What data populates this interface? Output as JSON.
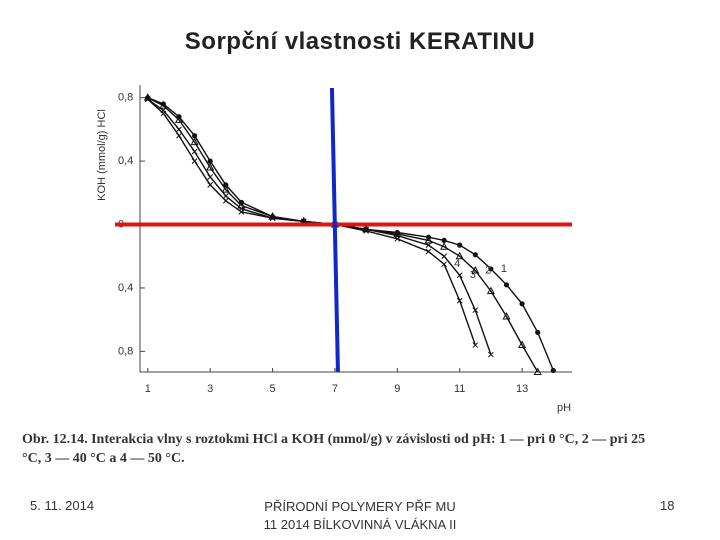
{
  "slide": {
    "title": "Sorpční vlastnosti KERATINU",
    "caption": "Obr. 12.14. Interakcia vlny s roztokmi HCl a KOH (mmol/g) v závislosti od pH: 1 — pri 0 °C, 2 — pri 25 °C, 3 — 40 °C a 4 — 50 °C.",
    "footer": {
      "date": "5. 11. 2014",
      "center": [
        "PŘÍRODNÍ POLYMERY PŘF MU",
        "11 2014 BÍLKOVINNÁ VLÁKNA II"
      ],
      "page": "18"
    }
  },
  "chart_data": {
    "type": "line",
    "x_label": "pH",
    "y_label": "KOH   (mmol/g)   HCl",
    "x": [
      1,
      1.5,
      2,
      2.5,
      3,
      3.5,
      4,
      5,
      6,
      7,
      8,
      9,
      10,
      10.5,
      11,
      11.5,
      12,
      12.5,
      13,
      13.5,
      14
    ],
    "series": [
      {
        "name": "1",
        "color": "#111111",
        "marker": "circle",
        "values": [
          0.8,
          0.76,
          0.68,
          0.56,
          0.4,
          0.25,
          0.14,
          0.05,
          0.02,
          0,
          -0.03,
          -0.05,
          -0.08,
          -0.1,
          -0.13,
          -0.19,
          -0.28,
          -0.38,
          -0.5,
          -0.68,
          -0.92
        ]
      },
      {
        "name": "2",
        "color": "#111111",
        "marker": "triangle",
        "values": [
          0.8,
          0.75,
          0.66,
          0.52,
          0.36,
          0.22,
          0.12,
          0.05,
          0.02,
          0,
          -0.03,
          -0.06,
          -0.1,
          -0.14,
          -0.2,
          -0.29,
          -0.42,
          -0.58,
          -0.76,
          -0.93,
          null
        ]
      },
      {
        "name": "3",
        "color": "#111111",
        "marker": "cross",
        "values": [
          0.79,
          0.72,
          0.6,
          0.46,
          0.3,
          0.18,
          0.1,
          0.04,
          0.02,
          0,
          -0.03,
          -0.07,
          -0.13,
          -0.2,
          -0.32,
          -0.54,
          -0.82,
          null,
          null,
          null,
          null
        ]
      },
      {
        "name": "4",
        "color": "#111111",
        "marker": "cross",
        "values": [
          0.79,
          0.7,
          0.56,
          0.4,
          0.25,
          0.15,
          0.08,
          0.04,
          0.02,
          0,
          -0.04,
          -0.09,
          -0.17,
          -0.25,
          -0.48,
          -0.76,
          null,
          null,
          null,
          null,
          null
        ]
      }
    ],
    "xlim": [
      0.75,
      14.6
    ],
    "ylim": [
      -0.93,
      0.88
    ],
    "xticks": [
      1,
      3,
      5,
      7,
      9,
      11,
      13
    ],
    "yticks": [
      {
        "value": 0.8,
        "label": "0,8"
      },
      {
        "value": 0.4,
        "label": "0,4"
      },
      0,
      {
        "value": -0.4,
        "label": "0,4"
      },
      {
        "value": -0.8,
        "label": "0,8"
      }
    ],
    "vline": {
      "x": 7,
      "color": "#1028c8"
    },
    "hline": {
      "y": 0,
      "color": "#e01414"
    }
  }
}
